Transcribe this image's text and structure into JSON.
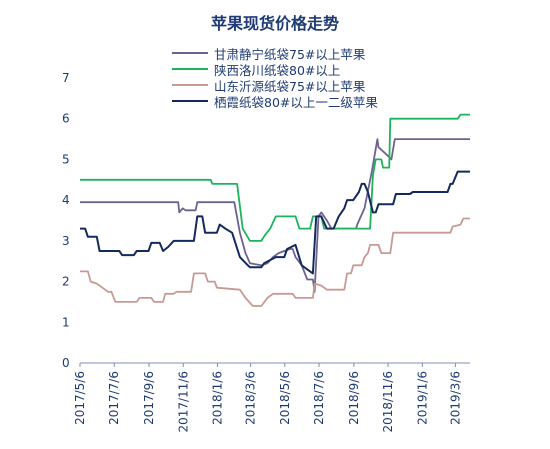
{
  "chart_data": {
    "type": "line",
    "title": "苹果现货价格走势",
    "xlabel": "",
    "ylabel": "",
    "ylim": [
      0,
      7
    ],
    "yticks": [
      0,
      1,
      2,
      3,
      4,
      5,
      6,
      7
    ],
    "xlim": [
      "2017-05-06",
      "2019-04-01"
    ],
    "xticks": [
      "2017/5/6",
      "2017/7/6",
      "2017/9/6",
      "2017/11/6",
      "2018/1/6",
      "2018/3/6",
      "2018/5/6",
      "2018/7/6",
      "2018/9/6",
      "2018/11/6",
      "2019/1/6",
      "2019/3/6"
    ],
    "grid": false,
    "legend_position": "top-center",
    "series": [
      {
        "name": "甘肃静宁纸袋75#以上苹果",
        "color": "#6e6290",
        "points": [
          [
            "2017-05-06",
            3.95
          ],
          [
            "2017-10-28",
            3.95
          ],
          [
            "2017-10-30",
            3.7
          ],
          [
            "2017-11-05",
            3.8
          ],
          [
            "2017-11-10",
            3.75
          ],
          [
            "2017-11-28",
            3.75
          ],
          [
            "2017-12-01",
            3.95
          ],
          [
            "2018-02-05",
            3.95
          ],
          [
            "2018-02-15",
            3.2
          ],
          [
            "2018-02-25",
            2.7
          ],
          [
            "2018-03-05",
            2.45
          ],
          [
            "2018-03-25",
            2.4
          ],
          [
            "2018-04-05",
            2.45
          ],
          [
            "2018-04-15",
            2.6
          ],
          [
            "2018-04-25",
            2.7
          ],
          [
            "2018-05-05",
            2.75
          ],
          [
            "2018-05-15",
            2.8
          ],
          [
            "2018-05-20",
            2.8
          ],
          [
            "2018-05-25",
            2.6
          ],
          [
            "2018-06-05",
            2.4
          ],
          [
            "2018-06-15",
            2.05
          ],
          [
            "2018-06-25",
            2.05
          ],
          [
            "2018-06-28",
            1.75
          ],
          [
            "2018-07-05",
            3.6
          ],
          [
            "2018-07-10",
            3.7
          ],
          [
            "2018-07-20",
            3.5
          ],
          [
            "2018-07-28",
            3.3
          ],
          [
            "2018-09-10",
            3.3
          ],
          [
            "2018-09-12",
            3.4
          ],
          [
            "2018-09-25",
            3.8
          ],
          [
            "2018-10-08",
            4.7
          ],
          [
            "2018-10-18",
            5.5
          ],
          [
            "2018-10-20",
            5.3
          ],
          [
            "2018-10-28",
            5.2
          ],
          [
            "2018-11-05",
            5.1
          ],
          [
            "2018-11-12",
            5.0
          ],
          [
            "2018-11-18",
            5.5
          ],
          [
            "2019-04-01",
            5.5
          ]
        ]
      },
      {
        "name": "陕西洛川纸袋80#以上",
        "color": "#1db35b",
        "points": [
          [
            "2017-05-06",
            4.5
          ],
          [
            "2017-12-25",
            4.5
          ],
          [
            "2017-12-28",
            4.4
          ],
          [
            "2018-02-10",
            4.4
          ],
          [
            "2018-02-20",
            3.3
          ],
          [
            "2018-03-05",
            3.0
          ],
          [
            "2018-03-25",
            3.0
          ],
          [
            "2018-04-01",
            3.15
          ],
          [
            "2018-04-10",
            3.3
          ],
          [
            "2018-04-20",
            3.6
          ],
          [
            "2018-05-25",
            3.6
          ],
          [
            "2018-06-01",
            3.3
          ],
          [
            "2018-06-20",
            3.3
          ],
          [
            "2018-06-25",
            3.6
          ],
          [
            "2018-07-10",
            3.6
          ],
          [
            "2018-07-15",
            3.3
          ],
          [
            "2018-10-05",
            3.3
          ],
          [
            "2018-10-10",
            4.6
          ],
          [
            "2018-10-15",
            5.0
          ],
          [
            "2018-10-25",
            5.0
          ],
          [
            "2018-10-28",
            4.8
          ],
          [
            "2018-11-08",
            4.8
          ],
          [
            "2018-11-10",
            6.0
          ],
          [
            "2019-03-10",
            6.0
          ],
          [
            "2019-03-15",
            6.1
          ],
          [
            "2019-04-01",
            6.1
          ]
        ]
      },
      {
        "name": "山东沂源纸袋75#以上苹果",
        "color": "#c79a94",
        "points": [
          [
            "2017-05-06",
            2.25
          ],
          [
            "2017-05-20",
            2.25
          ],
          [
            "2017-05-25",
            2.0
          ],
          [
            "2017-06-05",
            1.95
          ],
          [
            "2017-06-15",
            1.85
          ],
          [
            "2017-06-25",
            1.75
          ],
          [
            "2017-07-01",
            1.75
          ],
          [
            "2017-07-08",
            1.5
          ],
          [
            "2017-08-15",
            1.5
          ],
          [
            "2017-08-20",
            1.6
          ],
          [
            "2017-09-10",
            1.6
          ],
          [
            "2017-09-15",
            1.5
          ],
          [
            "2017-10-01",
            1.5
          ],
          [
            "2017-10-05",
            1.7
          ],
          [
            "2017-10-20",
            1.7
          ],
          [
            "2017-10-25",
            1.75
          ],
          [
            "2017-11-20",
            1.75
          ],
          [
            "2017-11-25",
            2.2
          ],
          [
            "2017-12-15",
            2.2
          ],
          [
            "2017-12-20",
            2.0
          ],
          [
            "2018-01-01",
            2.0
          ],
          [
            "2018-01-05",
            1.85
          ],
          [
            "2018-02-15",
            1.8
          ],
          [
            "2018-02-25",
            1.6
          ],
          [
            "2018-03-10",
            1.4
          ],
          [
            "2018-03-25",
            1.4
          ],
          [
            "2018-04-05",
            1.6
          ],
          [
            "2018-04-15",
            1.7
          ],
          [
            "2018-05-20",
            1.7
          ],
          [
            "2018-05-25",
            1.6
          ],
          [
            "2018-06-25",
            1.6
          ],
          [
            "2018-06-28",
            1.95
          ],
          [
            "2018-07-10",
            1.9
          ],
          [
            "2018-07-20",
            1.8
          ],
          [
            "2018-08-20",
            1.8
          ],
          [
            "2018-08-25",
            2.2
          ],
          [
            "2018-09-01",
            2.2
          ],
          [
            "2018-09-05",
            2.4
          ],
          [
            "2018-09-20",
            2.4
          ],
          [
            "2018-09-25",
            2.6
          ],
          [
            "2018-10-01",
            2.7
          ],
          [
            "2018-10-05",
            2.9
          ],
          [
            "2018-10-20",
            2.9
          ],
          [
            "2018-10-25",
            2.7
          ],
          [
            "2018-11-10",
            2.7
          ],
          [
            "2018-11-15",
            3.2
          ],
          [
            "2019-02-25",
            3.2
          ],
          [
            "2019-03-01",
            3.35
          ],
          [
            "2019-03-15",
            3.4
          ],
          [
            "2019-03-20",
            3.55
          ],
          [
            "2019-04-01",
            3.55
          ]
        ]
      },
      {
        "name": "栖霞纸袋80#以上一二级苹果",
        "color": "#142a5c",
        "points": [
          [
            "2017-05-06",
            3.3
          ],
          [
            "2017-05-15",
            3.3
          ],
          [
            "2017-05-20",
            3.1
          ],
          [
            "2017-06-05",
            3.1
          ],
          [
            "2017-06-10",
            2.75
          ],
          [
            "2017-07-15",
            2.75
          ],
          [
            "2017-07-20",
            2.65
          ],
          [
            "2017-08-10",
            2.65
          ],
          [
            "2017-08-15",
            2.75
          ],
          [
            "2017-09-05",
            2.75
          ],
          [
            "2017-09-10",
            2.95
          ],
          [
            "2017-09-25",
            2.95
          ],
          [
            "2017-10-01",
            2.75
          ],
          [
            "2017-10-10",
            2.85
          ],
          [
            "2017-10-20",
            3.0
          ],
          [
            "2017-11-25",
            3.0
          ],
          [
            "2017-12-01",
            3.6
          ],
          [
            "2017-12-10",
            3.6
          ],
          [
            "2017-12-15",
            3.2
          ],
          [
            "2018-01-05",
            3.2
          ],
          [
            "2018-01-10",
            3.4
          ],
          [
            "2018-01-20",
            3.3
          ],
          [
            "2018-02-01",
            3.2
          ],
          [
            "2018-02-15",
            2.6
          ],
          [
            "2018-03-01",
            2.4
          ],
          [
            "2018-03-05",
            2.35
          ],
          [
            "2018-03-25",
            2.35
          ],
          [
            "2018-03-30",
            2.45
          ],
          [
            "2018-04-20",
            2.6
          ],
          [
            "2018-05-05",
            2.6
          ],
          [
            "2018-05-10",
            2.8
          ],
          [
            "2018-05-25",
            2.9
          ],
          [
            "2018-06-05",
            2.4
          ],
          [
            "2018-06-15",
            2.3
          ],
          [
            "2018-06-25",
            2.2
          ],
          [
            "2018-07-01",
            3.6
          ],
          [
            "2018-07-10",
            3.6
          ],
          [
            "2018-07-20",
            3.3
          ],
          [
            "2018-08-01",
            3.3
          ],
          [
            "2018-08-10",
            3.6
          ],
          [
            "2018-08-20",
            3.8
          ],
          [
            "2018-08-25",
            4.0
          ],
          [
            "2018-09-05",
            4.0
          ],
          [
            "2018-09-15",
            4.2
          ],
          [
            "2018-09-20",
            4.4
          ],
          [
            "2018-09-25",
            4.4
          ],
          [
            "2018-10-01",
            4.2
          ],
          [
            "2018-10-10",
            3.7
          ],
          [
            "2018-10-15",
            3.7
          ],
          [
            "2018-10-20",
            3.9
          ],
          [
            "2018-11-15",
            3.9
          ],
          [
            "2018-11-20",
            4.15
          ],
          [
            "2018-12-15",
            4.15
          ],
          [
            "2018-12-20",
            4.2
          ],
          [
            "2019-02-20",
            4.2
          ],
          [
            "2019-02-25",
            4.4
          ],
          [
            "2019-03-01",
            4.4
          ],
          [
            "2019-03-10",
            4.7
          ],
          [
            "2019-04-01",
            4.7
          ]
        ]
      }
    ]
  }
}
